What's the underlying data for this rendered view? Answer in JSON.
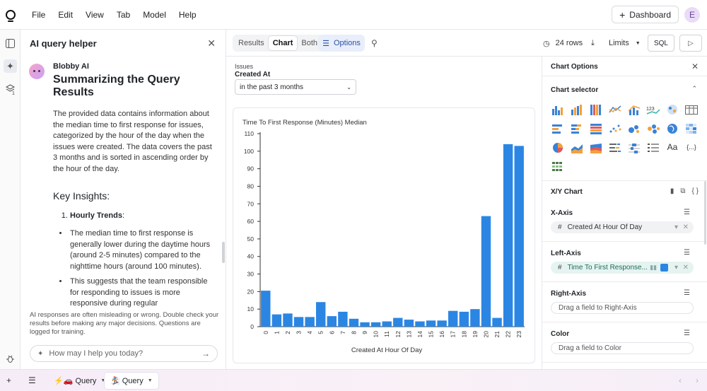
{
  "menu": [
    "File",
    "Edit",
    "View",
    "Tab",
    "Model",
    "Help"
  ],
  "header": {
    "dashboard_label": "Dashboard",
    "avatar_initial": "E"
  },
  "ai_panel": {
    "title": "AI query helper",
    "bot_name": "Blobby AI",
    "heading": "Summarizing the Query Results",
    "intro": "The provided data contains information about the median time to first response for issues, categorized by the hour of the day when the issues were created. The data covers the past 3 months and is sorted in ascending order by the hour of the day.",
    "insights_heading": "Key Insights:",
    "list_item_title": "Hourly Trends",
    "list_item_suffix": ":",
    "bullets": [
      "The median time to first response is generally lower during the daytime hours (around 2-5 minutes) compared to the nighttime hours (around 100 minutes).",
      "This suggests that the team responsible for responding to issues is more responsive during regular"
    ],
    "disclaimer": "AI responses are often misleading or wrong. Double check your results before making any major decisions. Questions are logged for training.",
    "input_placeholder": "How may I help you today?"
  },
  "view_toggle": {
    "results": "Results",
    "chart": "Chart",
    "both": "Both",
    "options": "Options"
  },
  "filter": {
    "model": "Issues",
    "field": "Created At",
    "value": "in the past 3 months"
  },
  "toolbar": {
    "rows": "24 rows",
    "limits": "Limits",
    "sql": "SQL"
  },
  "chart_data": {
    "type": "bar",
    "title": "Time To First Response (Minutes) Median",
    "xlabel": "Created At Hour Of Day",
    "ylabel": "",
    "categories": [
      "0",
      "1",
      "2",
      "3",
      "4",
      "5",
      "6",
      "7",
      "8",
      "9",
      "10",
      "11",
      "12",
      "13",
      "14",
      "15",
      "16",
      "17",
      "18",
      "19",
      "20",
      "21",
      "22",
      "23"
    ],
    "values": [
      20.5,
      7,
      7.5,
      5.5,
      5.5,
      14,
      6,
      8.5,
      4.5,
      2.5,
      2.5,
      3,
      5,
      4,
      3,
      3.5,
      3.5,
      9,
      8.5,
      10,
      63,
      5,
      104,
      103
    ],
    "ylim": [
      0,
      110
    ],
    "yticks": [
      0,
      10,
      20,
      30,
      40,
      50,
      60,
      70,
      80,
      90,
      100,
      110
    ],
    "bar_color": "#2b86e3",
    "grid": false
  },
  "options_panel": {
    "title": "Chart Options",
    "selector_label": "Chart selector",
    "chart_type_label": "X/Y Chart",
    "x_axis_label": "X-Axis",
    "x_axis_field": "Created At Hour Of Day",
    "left_axis_label": "Left-Axis",
    "left_axis_field": "Time To First Response...",
    "right_axis_label": "Right-Axis",
    "right_axis_placeholder": "Drag a field to Right-Axis",
    "color_label": "Color",
    "color_placeholder": "Drag a field to Color",
    "series_color": "#2b86e3",
    "text_type_label": "Aa",
    "json_type_label": "{...}",
    "code_label": "{ }",
    "hash": "#"
  },
  "bottom_tabs": [
    {
      "label": "⚡️🚗 Query"
    },
    {
      "label": "🏂 Query"
    }
  ],
  "rail_badge": "1"
}
